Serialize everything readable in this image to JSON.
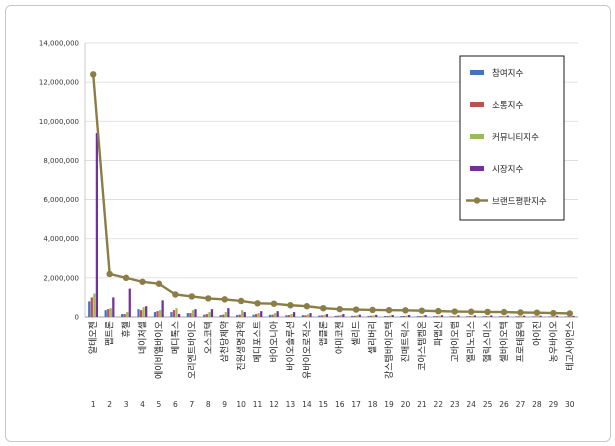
{
  "chart_data": {
    "type": "bar",
    "categories": [
      "알테오젠",
      "펩트론",
      "휴젤",
      "네이처셀",
      "에이비엘바이오",
      "메디톡스",
      "오리엔트바이오",
      "오스코텍",
      "삼천당제약",
      "진원생명과학",
      "메디포스트",
      "바이오니아",
      "바이오솔루션",
      "유바이오로직스",
      "앱클론",
      "아미코젠",
      "셀리드",
      "셀리버리",
      "강스템바이오텍",
      "진매트릭스",
      "코아스템켐온",
      "파멥신",
      "고바이오랩",
      "엘리노믹스",
      "헬릭스미스",
      "셀바이오텍",
      "프로테옴텍",
      "아이진",
      "농우바이오",
      "테고사이언스"
    ],
    "ranks": [
      "1",
      "2",
      "3",
      "4",
      "5",
      "6",
      "7",
      "8",
      "9",
      "10",
      "11",
      "12",
      "13",
      "14",
      "15",
      "16",
      "17",
      "18",
      "19",
      "20",
      "21",
      "22",
      "23",
      "24",
      "25",
      "26",
      "27",
      "28",
      "29",
      "30"
    ],
    "ylim": [
      0,
      14000000
    ],
    "yticks": [
      "0",
      "2,000,000",
      "4,000,000",
      "6,000,000",
      "8,000,000",
      "10,000,000",
      "12,000,000",
      "14,000,000"
    ],
    "ytick_values": [
      0,
      2000000,
      4000000,
      6000000,
      8000000,
      10000000,
      12000000,
      14000000
    ],
    "grid": true,
    "legend_position": "right",
    "series": [
      {
        "name": "참여지수",
        "kind": "bar",
        "color": "#4472c4",
        "values": [
          800000,
          350000,
          150000,
          400000,
          250000,
          250000,
          200000,
          120000,
          100000,
          100000,
          120000,
          110000,
          90000,
          90000,
          70000,
          60000,
          60000,
          55000,
          50000,
          50000,
          45000,
          45000,
          40000,
          40000,
          40000,
          35000,
          35000,
          30000,
          30000,
          30000
        ]
      },
      {
        "name": "소통지수",
        "kind": "bar",
        "color": "#c0504d",
        "values": [
          1000000,
          400000,
          150000,
          350000,
          300000,
          350000,
          200000,
          150000,
          120000,
          120000,
          150000,
          120000,
          100000,
          90000,
          80000,
          70000,
          60000,
          60000,
          55000,
          55000,
          50000,
          50000,
          45000,
          45000,
          45000,
          40000,
          40000,
          35000,
          35000,
          35000
        ]
      },
      {
        "name": "커뮤니티지수",
        "kind": "bar",
        "color": "#9bbb59",
        "values": [
          1200000,
          450000,
          250000,
          500000,
          350000,
          450000,
          350000,
          250000,
          250000,
          350000,
          200000,
          200000,
          150000,
          130000,
          110000,
          100000,
          90000,
          85000,
          80000,
          75000,
          70000,
          65000,
          60000,
          60000,
          55000,
          50000,
          50000,
          45000,
          45000,
          45000
        ]
      },
      {
        "name": "시장지수",
        "kind": "bar",
        "color": "#7030a0",
        "values": [
          9400000,
          1000000,
          1450000,
          550000,
          850000,
          150000,
          400000,
          400000,
          450000,
          250000,
          300000,
          300000,
          250000,
          200000,
          150000,
          150000,
          120000,
          110000,
          100000,
          100000,
          100000,
          90000,
          85000,
          80000,
          80000,
          70000,
          70000,
          65000,
          60000,
          60000
        ]
      },
      {
        "name": "브랜드평판지수",
        "kind": "line",
        "color": "#8b7d46",
        "values": [
          12400000,
          2200000,
          2000000,
          1800000,
          1700000,
          1150000,
          1050000,
          950000,
          900000,
          820000,
          700000,
          680000,
          600000,
          550000,
          450000,
          400000,
          380000,
          360000,
          350000,
          340000,
          320000,
          300000,
          280000,
          270000,
          260000,
          250000,
          230000,
          220000,
          200000,
          180000
        ]
      }
    ]
  }
}
